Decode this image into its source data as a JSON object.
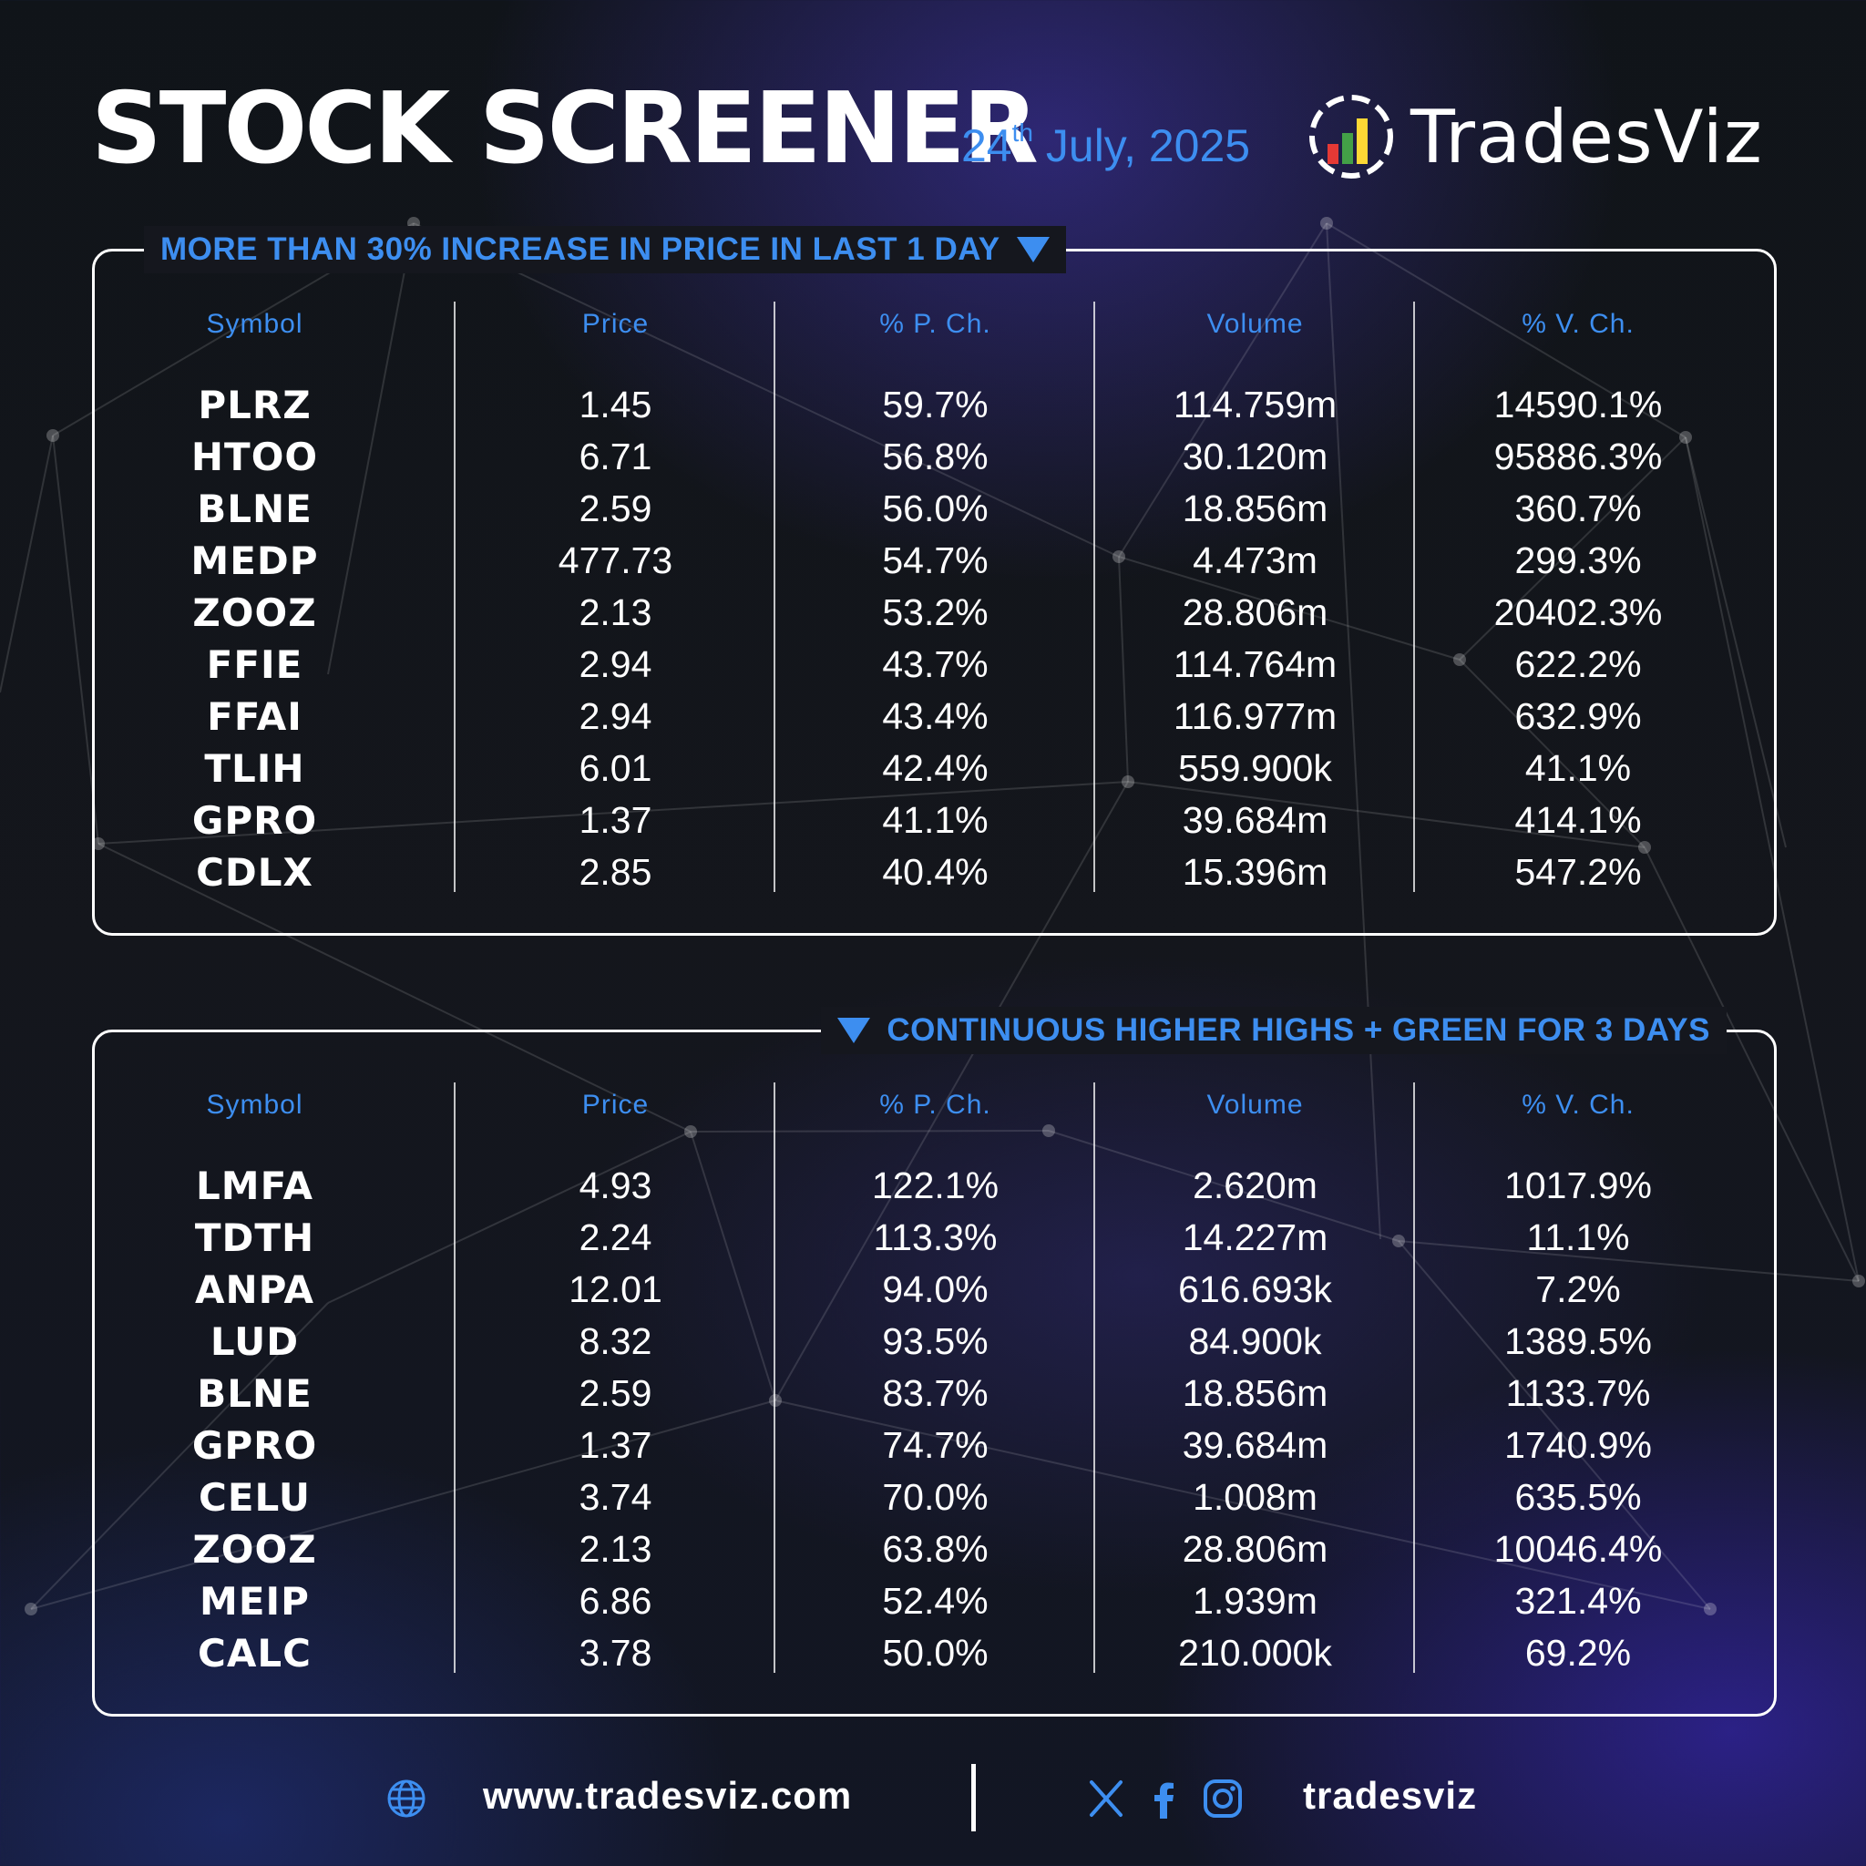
{
  "header": {
    "title": "STOCK SCREENER",
    "date_day": "24",
    "date_suffix": "th",
    "date_rest": "July, 2025"
  },
  "brand": {
    "name": "TradesViz",
    "logo_icon": "bar-chart-circle-icon"
  },
  "colors": {
    "accent": "#3d8ef0",
    "text": "#ffffff",
    "background": "#14161c"
  },
  "columns": [
    "Symbol",
    "Price",
    "% P. Ch.",
    "Volume",
    "% V. Ch."
  ],
  "screens": [
    {
      "title": "MORE THAN 30% INCREASE IN PRICE IN LAST 1 DAY",
      "icon": "triangle-down-icon",
      "rows": [
        {
          "symbol": "PLRZ",
          "price": "1.45",
          "pch": "59.7%",
          "volume": "114.759m",
          "vch": "14590.1%"
        },
        {
          "symbol": "HTOO",
          "price": "6.71",
          "pch": "56.8%",
          "volume": "30.120m",
          "vch": "95886.3%"
        },
        {
          "symbol": "BLNE",
          "price": "2.59",
          "pch": "56.0%",
          "volume": "18.856m",
          "vch": "360.7%"
        },
        {
          "symbol": "MEDP",
          "price": "477.73",
          "pch": "54.7%",
          "volume": "4.473m",
          "vch": "299.3%"
        },
        {
          "symbol": "ZOOZ",
          "price": "2.13",
          "pch": "53.2%",
          "volume": "28.806m",
          "vch": "20402.3%"
        },
        {
          "symbol": "FFIE",
          "price": "2.94",
          "pch": "43.7%",
          "volume": "114.764m",
          "vch": "622.2%"
        },
        {
          "symbol": "FFAI",
          "price": "2.94",
          "pch": "43.4%",
          "volume": "116.977m",
          "vch": "632.9%"
        },
        {
          "symbol": "TLIH",
          "price": "6.01",
          "pch": "42.4%",
          "volume": "559.900k",
          "vch": "41.1%"
        },
        {
          "symbol": "GPRO",
          "price": "1.37",
          "pch": "41.1%",
          "volume": "39.684m",
          "vch": "414.1%"
        },
        {
          "symbol": "CDLX",
          "price": "2.85",
          "pch": "40.4%",
          "volume": "15.396m",
          "vch": "547.2%"
        }
      ]
    },
    {
      "title": "CONTINUOUS HIGHER HIGHS + GREEN FOR 3 DAYS",
      "icon": "triangle-down-icon",
      "rows": [
        {
          "symbol": "LMFA",
          "price": "4.93",
          "pch": "122.1%",
          "volume": "2.620m",
          "vch": "1017.9%"
        },
        {
          "symbol": "TDTH",
          "price": "2.24",
          "pch": "113.3%",
          "volume": "14.227m",
          "vch": "11.1%"
        },
        {
          "symbol": "ANPA",
          "price": "12.01",
          "pch": "94.0%",
          "volume": "616.693k",
          "vch": "7.2%"
        },
        {
          "symbol": "LUD",
          "price": "8.32",
          "pch": "93.5%",
          "volume": "84.900k",
          "vch": "1389.5%"
        },
        {
          "symbol": "BLNE",
          "price": "2.59",
          "pch": "83.7%",
          "volume": "18.856m",
          "vch": "1133.7%"
        },
        {
          "symbol": "GPRO",
          "price": "1.37",
          "pch": "74.7%",
          "volume": "39.684m",
          "vch": "1740.9%"
        },
        {
          "symbol": "CELU",
          "price": "3.74",
          "pch": "70.0%",
          "volume": "1.008m",
          "vch": "635.5%"
        },
        {
          "symbol": "ZOOZ",
          "price": "2.13",
          "pch": "63.8%",
          "volume": "28.806m",
          "vch": "10046.4%"
        },
        {
          "symbol": "MEIP",
          "price": "6.86",
          "pch": "52.4%",
          "volume": "1.939m",
          "vch": "321.4%"
        },
        {
          "symbol": "CALC",
          "price": "3.78",
          "pch": "50.0%",
          "volume": "210.000k",
          "vch": "69.2%"
        }
      ]
    }
  ],
  "footer": {
    "website": "www.tradesviz.com",
    "handle": "tradesviz",
    "icons": [
      "globe-icon",
      "x-icon",
      "facebook-icon",
      "instagram-icon"
    ]
  }
}
